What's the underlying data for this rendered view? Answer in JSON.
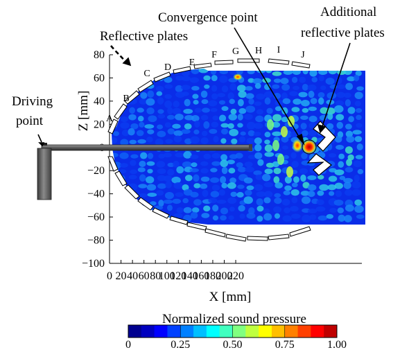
{
  "annotations": {
    "driving_point": [
      "Driving",
      "point"
    ],
    "reflective_plates": "Reflective plates",
    "convergence_point": "Convergence point",
    "additional_reflective_plates": [
      "Additional",
      "reflective plates"
    ]
  },
  "plate_labels": [
    "A",
    "B",
    "C",
    "D",
    "E",
    "F",
    "G",
    "H",
    "I",
    "J"
  ],
  "axes": {
    "xlabel": "X [mm]",
    "ylabel": "Z [mm]",
    "x_ticks": [
      "0",
      "20",
      "40",
      "60",
      "80",
      "100",
      "120",
      "140",
      "160",
      "180",
      "200",
      "220"
    ],
    "y_ticks": [
      "80",
      "60",
      "40",
      "20",
      "0",
      "−20",
      "−40",
      "−60",
      "−80",
      "−100"
    ]
  },
  "colorbar": {
    "title": "Normalized sound pressure",
    "tick_labels": [
      "0",
      "0.25",
      "0.50",
      "0.75",
      "1.00"
    ],
    "colors": [
      "#00008f",
      "#0000bf",
      "#0000ff",
      "#0040ff",
      "#0080ff",
      "#00bfff",
      "#00ffff",
      "#40ffbf",
      "#80ff80",
      "#bfff40",
      "#ffff00",
      "#ffbf00",
      "#ff8000",
      "#ff4000",
      "#ff0000",
      "#bf0000"
    ]
  }
}
